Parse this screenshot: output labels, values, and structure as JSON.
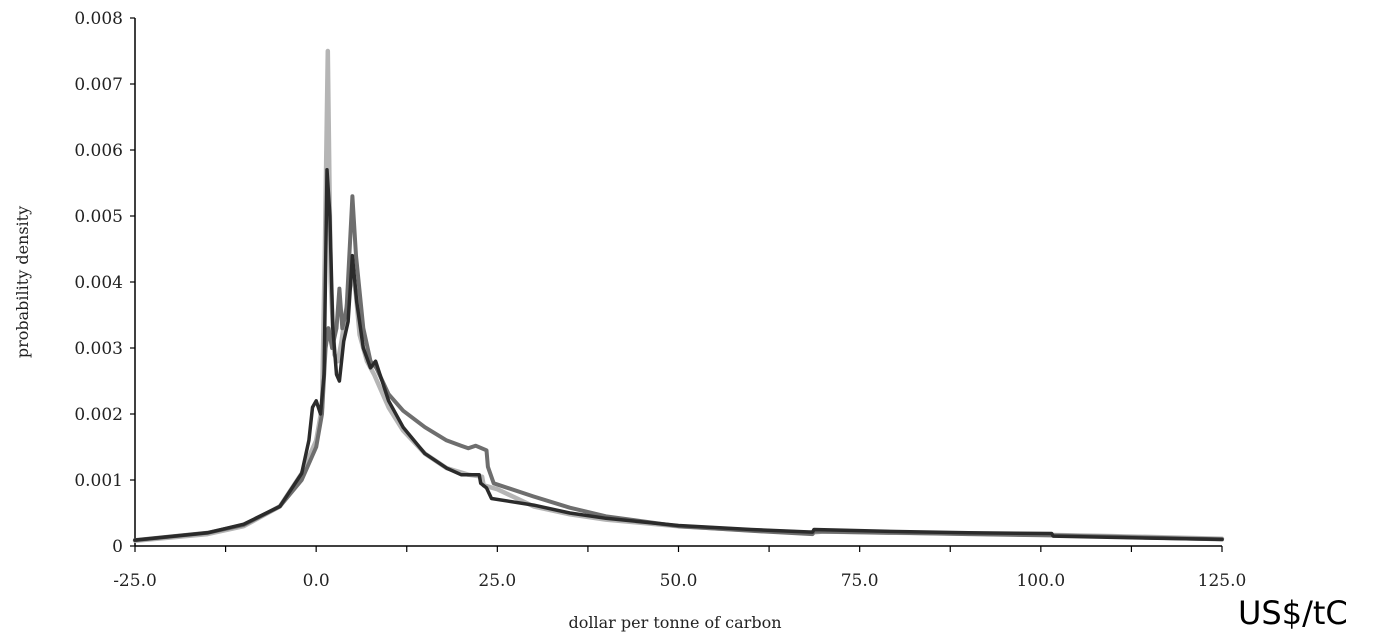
{
  "unit_note": "US$/tC",
  "chart_data": {
    "type": "line",
    "title": "",
    "xlabel": "dollar per tonne of carbon",
    "ylabel": "probability density",
    "xlim": [
      -25,
      125
    ],
    "ylim": [
      0,
      0.008
    ],
    "x_ticks": [
      "-25.0",
      "0.0",
      "25.0",
      "50.0",
      "75.0",
      "100.0",
      "125.0"
    ],
    "y_ticks": [
      "0",
      "0.001",
      "0.002",
      "0.003",
      "0.004",
      "0.005",
      "0.006",
      "0.007",
      "0.008"
    ],
    "grid": false,
    "legend": "none",
    "series": [
      {
        "color": "#b5b5b5",
        "points": [
          [
            -25,
            8e-05
          ],
          [
            -15,
            0.00018
          ],
          [
            -10,
            0.0003
          ],
          [
            -5,
            0.0006
          ],
          [
            -2,
            0.0011
          ],
          [
            0,
            0.0016
          ],
          [
            0.8,
            0.0021
          ],
          [
            1.2,
            0.0045
          ],
          [
            1.6,
            0.0075
          ],
          [
            2,
            0.004
          ],
          [
            2.5,
            0.0029
          ],
          [
            3,
            0.0028
          ],
          [
            3.5,
            0.0031
          ],
          [
            4,
            0.0035
          ],
          [
            4.5,
            0.0038
          ],
          [
            5,
            0.0042
          ],
          [
            5.5,
            0.0038
          ],
          [
            6,
            0.0032
          ],
          [
            7,
            0.0028
          ],
          [
            8,
            0.0026
          ],
          [
            10,
            0.0021
          ],
          [
            12,
            0.00175
          ],
          [
            15,
            0.0014
          ],
          [
            18,
            0.00118
          ],
          [
            21,
            0.00108
          ],
          [
            22.9,
            0.00105
          ],
          [
            23.1,
            0.00092
          ],
          [
            25,
            0.00086
          ],
          [
            30,
            0.0006
          ],
          [
            35,
            0.00048
          ],
          [
            40,
            0.0004
          ],
          [
            50,
            0.0003
          ],
          [
            60,
            0.00024
          ],
          [
            68,
            0.0002
          ],
          [
            70,
            0.00022
          ],
          [
            80,
            0.0002
          ],
          [
            90,
            0.00019
          ],
          [
            100,
            0.00017
          ],
          [
            110,
            0.00015
          ],
          [
            125,
            0.00011
          ]
        ]
      },
      {
        "color": "#6e6e6e",
        "points": [
          [
            -25,
            9e-05
          ],
          [
            -15,
            0.0002
          ],
          [
            -10,
            0.00032
          ],
          [
            -5,
            0.0006
          ],
          [
            -2,
            0.001
          ],
          [
            0,
            0.0015
          ],
          [
            0.8,
            0.002
          ],
          [
            1.3,
            0.003
          ],
          [
            1.7,
            0.0033
          ],
          [
            2.2,
            0.003
          ],
          [
            2.8,
            0.0033
          ],
          [
            3.2,
            0.0039
          ],
          [
            3.6,
            0.0033
          ],
          [
            4.2,
            0.0036
          ],
          [
            5,
            0.0053
          ],
          [
            5.5,
            0.0044
          ],
          [
            6.5,
            0.0033
          ],
          [
            7.5,
            0.0028
          ],
          [
            8.3,
            0.0027
          ],
          [
            10,
            0.0023
          ],
          [
            12,
            0.00205
          ],
          [
            15,
            0.0018
          ],
          [
            18,
            0.0016
          ],
          [
            20,
            0.00152
          ],
          [
            21,
            0.00148
          ],
          [
            22,
            0.00152
          ],
          [
            23.5,
            0.00145
          ],
          [
            23.7,
            0.0012
          ],
          [
            24.5,
            0.00095
          ],
          [
            30,
            0.00075
          ],
          [
            35,
            0.00058
          ],
          [
            40,
            0.00045
          ],
          [
            50,
            0.0003
          ],
          [
            60,
            0.00023
          ],
          [
            68.5,
            0.00018
          ],
          [
            68.7,
            0.00022
          ],
          [
            80,
            0.0002
          ],
          [
            90,
            0.00018
          ],
          [
            101.5,
            0.00016
          ],
          [
            110,
            0.00014
          ],
          [
            125,
            0.0001
          ]
        ]
      },
      {
        "color": "#2b2b2b",
        "points": [
          [
            -25,
            9e-05
          ],
          [
            -15,
            0.0002
          ],
          [
            -10,
            0.00033
          ],
          [
            -5,
            0.0006
          ],
          [
            -2,
            0.0011
          ],
          [
            -1,
            0.0016
          ],
          [
            -0.5,
            0.0021
          ],
          [
            0,
            0.0022
          ],
          [
            0.6,
            0.002
          ],
          [
            1.1,
            0.0026
          ],
          [
            1.5,
            0.0057
          ],
          [
            1.9,
            0.005
          ],
          [
            2.3,
            0.0033
          ],
          [
            2.8,
            0.0026
          ],
          [
            3.2,
            0.0025
          ],
          [
            3.8,
            0.0031
          ],
          [
            4.4,
            0.0034
          ],
          [
            5,
            0.0044
          ],
          [
            5.6,
            0.0037
          ],
          [
            6.5,
            0.003
          ],
          [
            7.5,
            0.0027
          ],
          [
            8.2,
            0.0028
          ],
          [
            10,
            0.0022
          ],
          [
            12,
            0.0018
          ],
          [
            15,
            0.0014
          ],
          [
            18,
            0.00118
          ],
          [
            20,
            0.00108
          ],
          [
            22.5,
            0.00108
          ],
          [
            22.7,
            0.00095
          ],
          [
            23.5,
            0.00088
          ],
          [
            24.2,
            0.00072
          ],
          [
            30,
            0.00062
          ],
          [
            35,
            0.0005
          ],
          [
            40,
            0.00042
          ],
          [
            50,
            0.00031
          ],
          [
            60,
            0.00025
          ],
          [
            68.5,
            0.00021
          ],
          [
            68.7,
            0.00025
          ],
          [
            80,
            0.00022
          ],
          [
            90,
            0.0002
          ],
          [
            101.5,
            0.00019
          ],
          [
            101.7,
            0.00015
          ],
          [
            110,
            0.00013
          ],
          [
            125,
            0.0001
          ]
        ]
      }
    ]
  }
}
